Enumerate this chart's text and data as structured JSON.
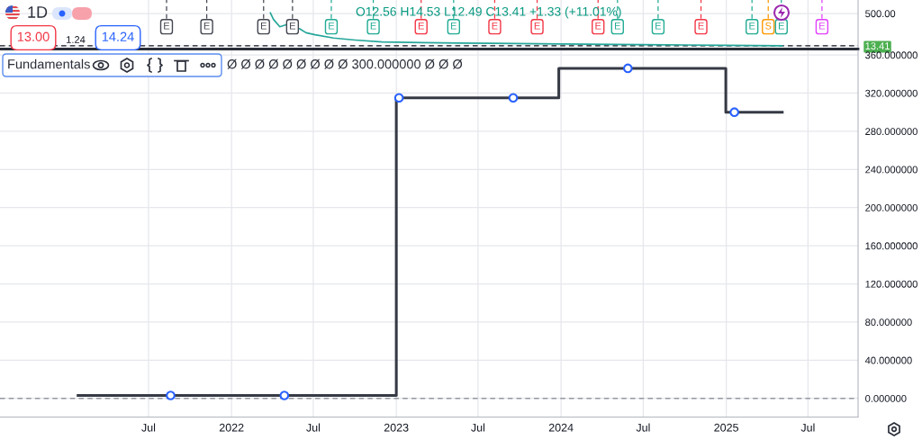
{
  "chart_data": [
    {
      "type": "line",
      "title": "1D",
      "color": "#26a69a",
      "x": [
        "2022-03-28",
        "2022-04-04",
        "2022-04-18",
        "2022-05-02",
        "2022-06-01",
        "2022-06-15",
        "2022-07-05",
        "2022-08-15",
        "2022-10-01",
        "2022-12-01",
        "2023-03-01",
        "2023-08-01",
        "2024-01-02",
        "2024-07-01",
        "2025-01-02",
        "2025-05-05"
      ],
      "values": [
        510,
        410,
        300,
        330,
        270,
        210,
        180,
        130,
        100,
        70,
        60,
        50,
        40,
        30,
        20,
        13.41
      ],
      "annotations": [
        "O12.56 H14.53 L12.49 C13.41 +1.33 (+11.01%)",
        "13.00",
        "1.24",
        "14.24"
      ],
      "xlim": [
        "2020-08-06",
        "2025-10-20"
      ],
      "ylim": [
        -36,
        704
      ],
      "xticks": [
        {
          "value": "2021-07-01",
          "label": null
        },
        {
          "value": "2022-01-01",
          "label": null
        },
        {
          "value": "2022-07-01",
          "label": null
        },
        {
          "value": "2023-01-01",
          "label": null
        },
        {
          "value": "2023-07-01",
          "label": null
        },
        {
          "value": "2024-01-01",
          "label": null
        },
        {
          "value": "2024-07-01",
          "label": null
        },
        {
          "value": "2025-01-01",
          "label": null
        },
        {
          "value": "2025-07-01",
          "label": null
        }
      ],
      "yticks": [
        {
          "value": 13.41,
          "label": "13.41"
        },
        {
          "value": 500,
          "label": "500.00"
        }
      ],
      "tick_labels": "y",
      "grid": true,
      "ref_lines": [
        {
          "axis": "y",
          "value": 13.41,
          "color": "#131722",
          "line_style": "dashed"
        },
        {
          "axis": "x",
          "value": "2021-08-10",
          "label": "E",
          "color": "#434651",
          "line_style": "dashed"
        },
        {
          "axis": "x",
          "value": "2021-11-07",
          "label": "E",
          "color": "#434651",
          "line_style": "dashed"
        },
        {
          "axis": "x",
          "value": "2022-03-13",
          "label": "E",
          "color": "#434651",
          "line_style": "dashed"
        },
        {
          "axis": "x",
          "value": "2022-05-16",
          "label": "E",
          "color": "#434651",
          "line_style": "dashed"
        },
        {
          "axis": "x",
          "value": "2022-08-10",
          "label": "E",
          "color": "#22ab94",
          "line_style": "dashed"
        },
        {
          "axis": "x",
          "value": "2022-11-11",
          "label": "E",
          "color": "#22ab94",
          "line_style": "dashed"
        },
        {
          "axis": "x",
          "value": "2023-02-25",
          "label": "E",
          "color": "#f23645",
          "line_style": "dashed"
        },
        {
          "axis": "x",
          "value": "2023-05-08",
          "label": "E",
          "color": "#22ab94",
          "line_style": "dashed"
        },
        {
          "axis": "x",
          "value": "2023-08-07",
          "label": "E",
          "color": "#f23645",
          "line_style": "dashed"
        },
        {
          "axis": "x",
          "value": "2023-11-09",
          "label": "E",
          "color": "#f23645",
          "line_style": "dashed"
        },
        {
          "axis": "x",
          "value": "2024-03-23",
          "label": "E",
          "color": "#f23645",
          "line_style": "dashed"
        },
        {
          "axis": "x",
          "value": "2024-05-05",
          "label": "E",
          "color": "#22ab94",
          "line_style": "dashed"
        },
        {
          "axis": "x",
          "value": "2024-08-03",
          "label": "E",
          "color": "#22ab94",
          "line_style": "dashed"
        },
        {
          "axis": "x",
          "value": "2024-11-06",
          "label": "E",
          "color": "#f23645",
          "line_style": "dashed"
        },
        {
          "axis": "x",
          "value": "2025-02-27",
          "label": "E",
          "color": "#22ab94",
          "line_style": "dashed"
        },
        {
          "axis": "x",
          "value": "2025-04-04",
          "label": "S",
          "color": "#ff9800",
          "line_style": "dashed"
        },
        {
          "axis": "x",
          "value": "2025-05-03",
          "label": "E",
          "color": "#22ab94",
          "line_style": "dashed"
        },
        {
          "axis": "x",
          "value": "2025-08-01",
          "label": "E",
          "color": "#e040fb",
          "line_style": "dashed"
        }
      ]
    },
    {
      "type": "step",
      "title": "Fundamentals",
      "subtitle": "Ø Ø Ø Ø Ø Ø Ø Ø Ø 300.000000 Ø Ø Ø",
      "series": [
        {
          "type": "step",
          "color": "#363a45",
          "x": [
            "2021-01-26",
            "2023-01-01",
            "2023-12-27",
            "2024-12-31",
            "2025-05-05"
          ],
          "values": [
            3,
            315,
            346,
            300,
            300
          ]
        },
        {
          "type": "scatter",
          "color": "#2962ff",
          "marker": "circle",
          "x": [
            "2021-08-19",
            "2022-04-28",
            "2023-01-07",
            "2023-09-17",
            "2024-05-28",
            "2025-01-19"
          ],
          "values": [
            3,
            3,
            315,
            315,
            346,
            300
          ]
        }
      ],
      "xlim": [
        "2020-08-06",
        "2025-10-20"
      ],
      "ylim": [
        -19.6,
        364.8
      ],
      "xticks": [
        {
          "value": "2021-07-01",
          "label": "Jul"
        },
        {
          "value": "2022-01-01",
          "label": "2022"
        },
        {
          "value": "2022-07-01",
          "label": "Jul"
        },
        {
          "value": "2023-01-01",
          "label": "2023"
        },
        {
          "value": "2023-07-01",
          "label": "Jul"
        },
        {
          "value": "2024-01-01",
          "label": "2024"
        },
        {
          "value": "2024-07-01",
          "label": "Jul"
        },
        {
          "value": "2025-01-01",
          "label": "2025"
        },
        {
          "value": "2025-07-01",
          "label": "Jul"
        }
      ],
      "yticks": [
        {
          "value": 0,
          "label": "0.000000"
        },
        {
          "value": 40,
          "label": "40.000000"
        },
        {
          "value": 80,
          "label": "80.000000"
        },
        {
          "value": 120,
          "label": "120.000000"
        },
        {
          "value": 160,
          "label": "160.000000"
        },
        {
          "value": 200,
          "label": "200.000000"
        },
        {
          "value": 240,
          "label": "240.000000"
        },
        {
          "value": 280,
          "label": "280.000000"
        },
        {
          "value": 320,
          "label": "320.000000"
        },
        {
          "value": 360,
          "label": "360.000000"
        }
      ],
      "grid": true,
      "ref_lines": [
        {
          "axis": "y",
          "value": 0,
          "color": "#9598a1",
          "line_style": "dashed"
        }
      ]
    }
  ]
}
